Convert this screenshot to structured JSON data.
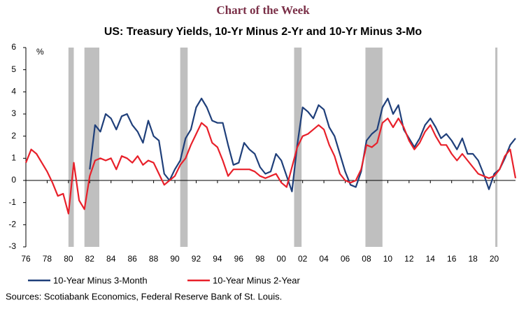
{
  "chart_data": {
    "type": "line",
    "kicker": "Chart of the Week",
    "title": "US: Treasury Yields, 10-Yr Minus 2-Yr and 10-Yr Minus 3-Mo",
    "y_unit_label": "%",
    "source": "Sources: Scotiabank Economics, Federal Reserve Bank of St. Louis.",
    "xlim": [
      1976,
      2022
    ],
    "ylim": [
      -3,
      6
    ],
    "yticks": [
      -3,
      -2,
      -1,
      0,
      1,
      2,
      3,
      4,
      5,
      6
    ],
    "xticks": [
      {
        "value": 1976,
        "label": "76"
      },
      {
        "value": 1978,
        "label": "78"
      },
      {
        "value": 1980,
        "label": "80"
      },
      {
        "value": 1982,
        "label": "82"
      },
      {
        "value": 1984,
        "label": "84"
      },
      {
        "value": 1986,
        "label": "86"
      },
      {
        "value": 1988,
        "label": "88"
      },
      {
        "value": 1990,
        "label": "90"
      },
      {
        "value": 1992,
        "label": "92"
      },
      {
        "value": 1994,
        "label": "94"
      },
      {
        "value": 1996,
        "label": "96"
      },
      {
        "value": 1998,
        "label": "98"
      },
      {
        "value": 2000,
        "label": "00"
      },
      {
        "value": 2002,
        "label": "02"
      },
      {
        "value": 2004,
        "label": "04"
      },
      {
        "value": 2006,
        "label": "06"
      },
      {
        "value": 2008,
        "label": "08"
      },
      {
        "value": 2010,
        "label": "10"
      },
      {
        "value": 2012,
        "label": "12"
      },
      {
        "value": 2014,
        "label": "14"
      },
      {
        "value": 2016,
        "label": "16"
      },
      {
        "value": 2018,
        "label": "18"
      },
      {
        "value": 2020,
        "label": "20"
      }
    ],
    "shaded_periods": [
      [
        1980.0,
        1980.5
      ],
      [
        1981.5,
        1982.9
      ],
      [
        1990.5,
        1991.2
      ],
      [
        2001.2,
        2001.9
      ],
      [
        2007.9,
        2009.5
      ],
      [
        2020.1,
        2020.3
      ]
    ],
    "shade_color": "#bfbfbf",
    "x": [
      1976.0,
      1976.5,
      1977.0,
      1977.5,
      1978.0,
      1978.5,
      1979.0,
      1979.5,
      1980.0,
      1980.5,
      1981.0,
      1981.5,
      1982.0,
      1982.5,
      1983.0,
      1983.5,
      1984.0,
      1984.5,
      1985.0,
      1985.5,
      1986.0,
      1986.5,
      1987.0,
      1987.5,
      1988.0,
      1988.5,
      1989.0,
      1989.5,
      1990.0,
      1990.5,
      1991.0,
      1991.5,
      1992.0,
      1992.5,
      1993.0,
      1993.5,
      1994.0,
      1994.5,
      1995.0,
      1995.5,
      1996.0,
      1996.5,
      1997.0,
      1997.5,
      1998.0,
      1998.5,
      1999.0,
      1999.5,
      2000.0,
      2000.5,
      2001.0,
      2001.5,
      2002.0,
      2002.5,
      2003.0,
      2003.5,
      2004.0,
      2004.5,
      2005.0,
      2005.5,
      2006.0,
      2006.5,
      2007.0,
      2007.5,
      2008.0,
      2008.5,
      2009.0,
      2009.5,
      2010.0,
      2010.5,
      2011.0,
      2011.5,
      2012.0,
      2012.5,
      2013.0,
      2013.5,
      2014.0,
      2014.5,
      2015.0,
      2015.5,
      2016.0,
      2016.5,
      2017.0,
      2017.5,
      2018.0,
      2018.5,
      2019.0,
      2019.5,
      2020.0,
      2020.5,
      2021.0,
      2021.5,
      2022.0
    ],
    "series": [
      {
        "name": "10-Year Minus 3-Month",
        "color": "#1f3f7a",
        "values": [
          null,
          null,
          null,
          null,
          null,
          null,
          null,
          null,
          null,
          null,
          null,
          null,
          0.5,
          2.5,
          2.2,
          3.0,
          2.8,
          2.3,
          2.9,
          3.0,
          2.5,
          2.2,
          1.7,
          2.7,
          2.0,
          1.8,
          0.3,
          0.0,
          0.5,
          0.9,
          1.9,
          2.3,
          3.3,
          3.7,
          3.3,
          2.7,
          2.6,
          2.6,
          1.6,
          0.7,
          0.8,
          1.7,
          1.4,
          1.2,
          0.6,
          0.3,
          0.4,
          1.2,
          0.9,
          0.2,
          -0.5,
          1.6,
          3.3,
          3.1,
          2.8,
          3.4,
          3.2,
          2.4,
          2.0,
          1.2,
          0.4,
          -0.2,
          -0.3,
          0.4,
          1.8,
          2.1,
          2.3,
          3.3,
          3.7,
          3.0,
          3.4,
          2.3,
          1.9,
          1.5,
          1.9,
          2.5,
          2.8,
          2.4,
          1.9,
          2.1,
          1.8,
          1.4,
          1.9,
          1.2,
          1.2,
          0.9,
          0.3,
          -0.4,
          0.3,
          0.5,
          1.0,
          1.6,
          1.9
        ]
      },
      {
        "name": "10-Year Minus 2-Year",
        "color": "#e8202a",
        "values": [
          0.8,
          1.4,
          1.2,
          0.8,
          0.4,
          -0.1,
          -0.7,
          -0.6,
          -1.5,
          0.8,
          -0.9,
          -1.3,
          0.2,
          0.9,
          1.0,
          0.9,
          1.0,
          0.5,
          1.1,
          1.0,
          0.8,
          1.1,
          0.7,
          0.9,
          0.8,
          0.3,
          -0.2,
          0.0,
          0.2,
          0.7,
          1.0,
          1.6,
          2.1,
          2.6,
          2.4,
          1.7,
          1.5,
          0.9,
          0.2,
          0.5,
          0.5,
          0.5,
          0.5,
          0.4,
          0.2,
          0.1,
          0.2,
          0.3,
          -0.1,
          -0.3,
          0.6,
          1.5,
          2.0,
          2.1,
          2.3,
          2.5,
          2.3,
          1.6,
          1.1,
          0.3,
          0.0,
          -0.1,
          0.0,
          0.5,
          1.6,
          1.5,
          1.7,
          2.6,
          2.8,
          2.4,
          2.8,
          2.4,
          1.8,
          1.4,
          1.7,
          2.2,
          2.5,
          2.0,
          1.6,
          1.6,
          1.2,
          0.9,
          1.2,
          0.9,
          0.6,
          0.3,
          0.2,
          0.1,
          0.2,
          0.5,
          1.1,
          1.4,
          0.1
        ]
      }
    ]
  }
}
